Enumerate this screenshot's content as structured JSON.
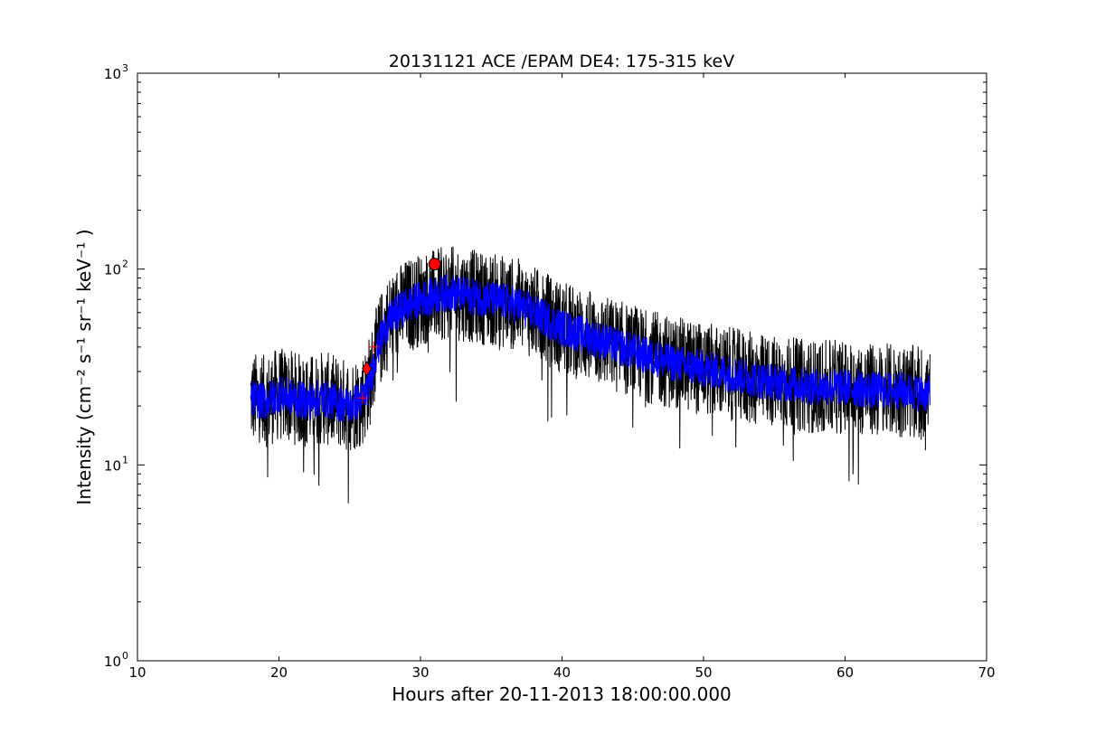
{
  "chart_data": {
    "type": "line",
    "title": "20131121 ACE /EPAM DE4: 175-315 keV",
    "xlabel": "Hours after 20-11-2013 18:00:00.000",
    "ylabel": "Intensity (cm⁻² s⁻¹ sr⁻¹ keV⁻¹ )",
    "xlim": [
      10,
      70
    ],
    "ylim": [
      1,
      1000
    ],
    "yscale": "log",
    "xticks": [
      10,
      20,
      30,
      40,
      50,
      60,
      70
    ],
    "yticks": [
      {
        "value": 1,
        "base": "10",
        "exp": "0"
      },
      {
        "value": 10,
        "base": "10",
        "exp": "1"
      },
      {
        "value": 100,
        "base": "10",
        "exp": "2"
      },
      {
        "value": 1000,
        "base": "10",
        "exp": "3"
      }
    ],
    "grid": false,
    "series": [
      {
        "color": "#000000",
        "style": "noisy-line",
        "x": [
          18,
          19,
          20,
          21,
          22,
          23,
          24,
          25,
          26,
          26.5,
          27,
          27.5,
          28,
          29,
          30,
          31,
          32,
          33,
          34,
          35,
          36,
          37,
          38,
          39,
          40,
          42,
          44,
          46,
          48,
          50,
          52,
          54,
          56,
          58,
          60,
          62,
          64,
          66
        ],
        "y": [
          22,
          21,
          23,
          22,
          21,
          22,
          21,
          20,
          22,
          28,
          40,
          50,
          57,
          65,
          70,
          73,
          76,
          74,
          72,
          70,
          68,
          65,
          60,
          55,
          50,
          45,
          40,
          36,
          33,
          31,
          29,
          27,
          26,
          25,
          25,
          24,
          24,
          23
        ]
      },
      {
        "color": "#0000ff",
        "style": "noisy-line",
        "x": [
          18,
          19,
          20,
          21,
          22,
          23,
          24,
          25,
          26,
          26.5,
          27,
          27.5,
          28,
          29,
          30,
          31,
          32,
          33,
          34,
          35,
          36,
          37,
          38,
          39,
          40,
          42,
          44,
          46,
          48,
          50,
          52,
          54,
          56,
          58,
          60,
          62,
          64,
          66
        ],
        "y": [
          22,
          21,
          23,
          22,
          21,
          22,
          21,
          20,
          22,
          28,
          40,
          50,
          57,
          65,
          70,
          73,
          76,
          74,
          72,
          70,
          68,
          65,
          60,
          55,
          50,
          45,
          40,
          36,
          33,
          31,
          29,
          27,
          26,
          25,
          25,
          24,
          24,
          23
        ]
      }
    ],
    "annotations": [
      {
        "type": "circle",
        "x": 31.0,
        "y": 106,
        "color": "#ff0000"
      },
      {
        "type": "diamond",
        "x": 26.2,
        "y": 31,
        "color": "#ff0000"
      },
      {
        "type": "plus",
        "x": 25.9,
        "y": 22,
        "color": "#ff0000"
      },
      {
        "type": "plus",
        "x": 26.7,
        "y": 40,
        "color": "#ff0000"
      }
    ]
  }
}
